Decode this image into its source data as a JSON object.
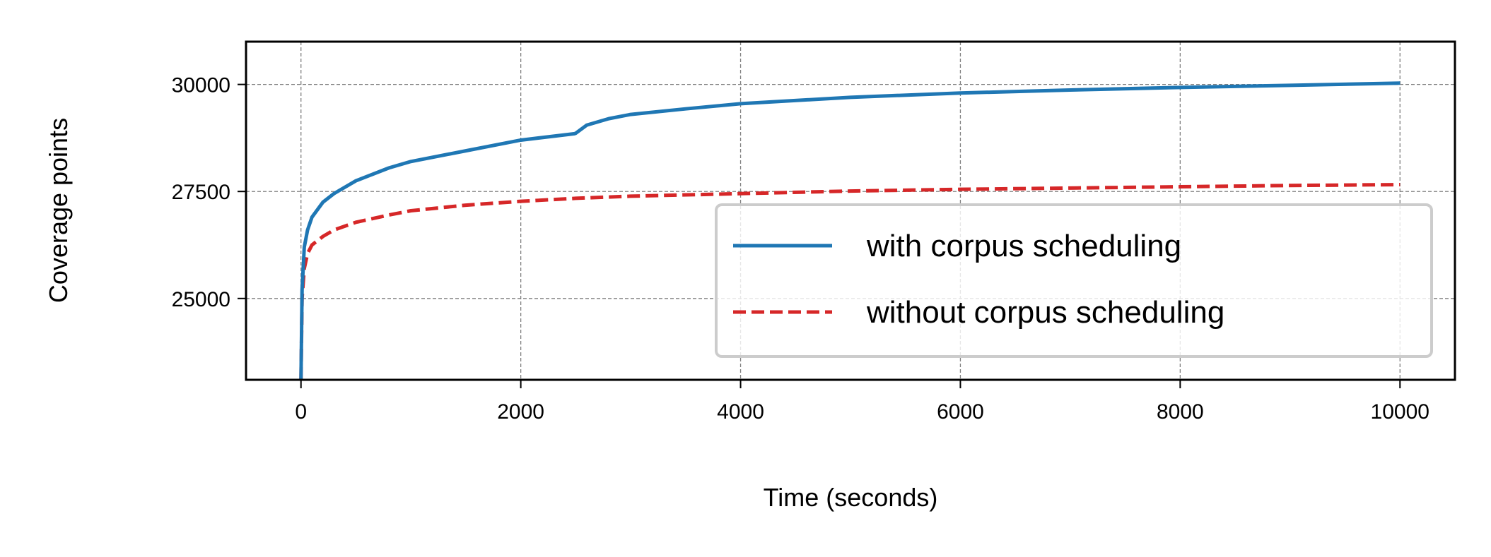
{
  "chart_data": {
    "type": "line",
    "title": "",
    "xlabel": "Time (seconds)",
    "ylabel": "Coverage points",
    "xlim": [
      -500,
      10500
    ],
    "ylim": [
      23100,
      31000
    ],
    "xticks": [
      0,
      2000,
      4000,
      6000,
      8000,
      10000
    ],
    "xtick_labels": [
      "0",
      "2000",
      "4000",
      "6000",
      "8000",
      "10000"
    ],
    "yticks": [
      25000,
      27500,
      30000
    ],
    "ytick_labels": [
      "25000",
      "27500",
      "30000"
    ],
    "grid": true,
    "legend_position": "lower-right",
    "series": [
      {
        "name": "with corpus scheduling",
        "color": "#1f77b4",
        "style": "solid",
        "x": [
          0,
          10,
          30,
          60,
          100,
          200,
          300,
          500,
          800,
          1000,
          1500,
          2000,
          2490,
          2500,
          2600,
          2800,
          3000,
          3500,
          4000,
          5000,
          6000,
          7000,
          8000,
          9000,
          10000
        ],
        "y": [
          23100,
          25200,
          26200,
          26600,
          26900,
          27250,
          27450,
          27750,
          28050,
          28200,
          28450,
          28700,
          28850,
          28860,
          29050,
          29200,
          29300,
          29430,
          29550,
          29700,
          29800,
          29870,
          29930,
          29980,
          30030
        ]
      },
      {
        "name": "without corpus scheduling",
        "color": "#d62728",
        "style": "dashed",
        "x": [
          0,
          10,
          30,
          60,
          100,
          200,
          300,
          500,
          800,
          1000,
          1500,
          2000,
          2500,
          3000,
          4000,
          5000,
          6000,
          7000,
          8000,
          9000,
          10000
        ],
        "y": [
          23100,
          25000,
          25700,
          26050,
          26250,
          26450,
          26600,
          26780,
          26950,
          27050,
          27180,
          27270,
          27340,
          27390,
          27450,
          27510,
          27550,
          27580,
          27610,
          27640,
          27660
        ]
      }
    ]
  }
}
